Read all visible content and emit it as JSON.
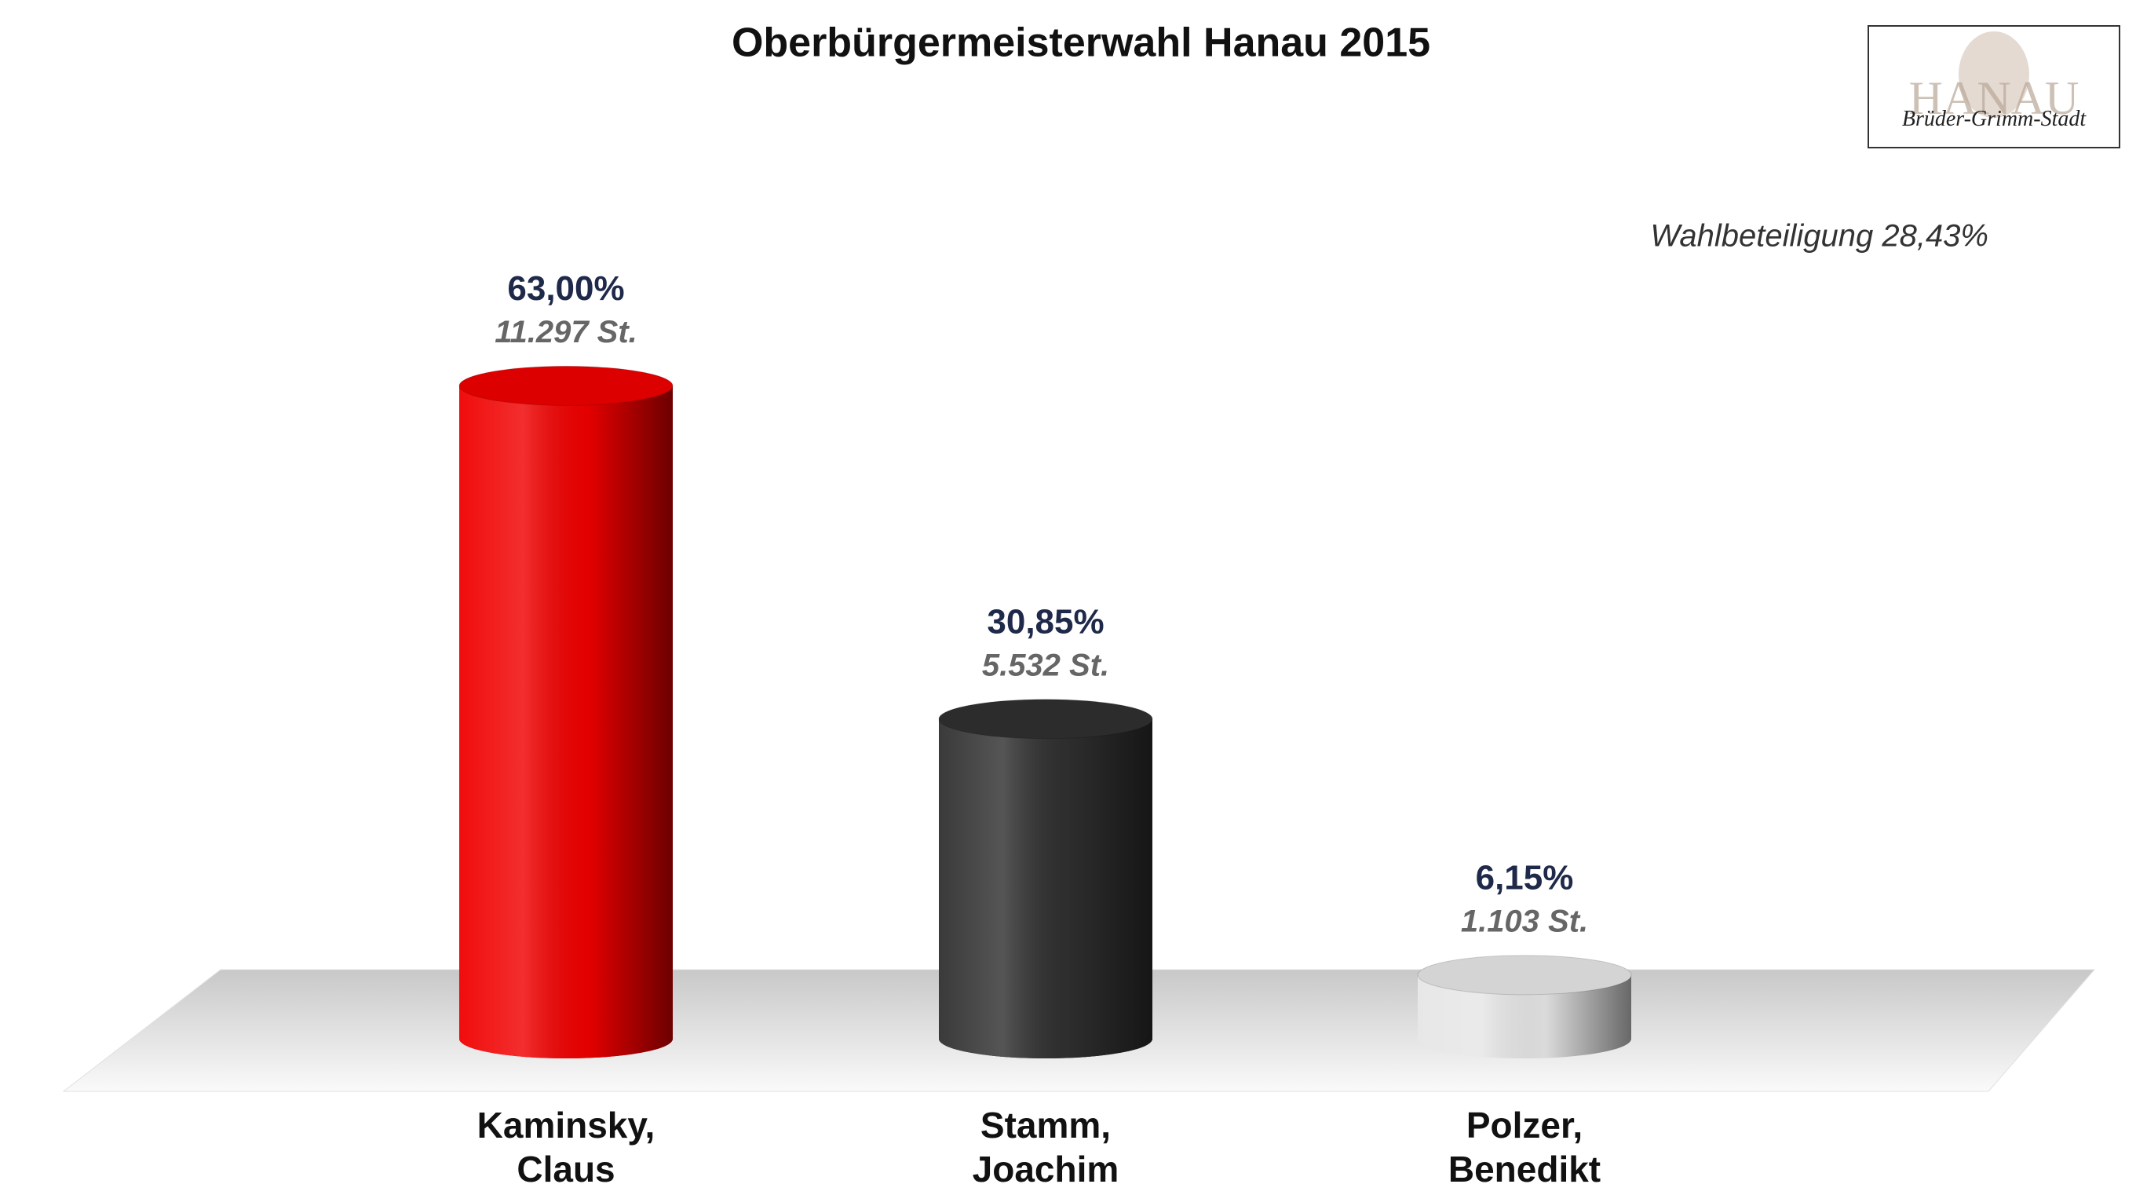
{
  "chart_data": {
    "type": "bar",
    "title": "Oberbürgermeisterwahl Hanau 2015",
    "annotation": "Wahlbeteiligung 28,43%",
    "logo": {
      "text": "HANAU",
      "subtitle": "Brüder-Grimm-Stadt"
    },
    "categories": [
      "Kaminsky,\nClaus",
      "Stamm,\nJoachim",
      "Polzer,\nBenedikt"
    ],
    "values": [
      63,
      30.85,
      6.15
    ],
    "value_labels": [
      "63,00%",
      "30,85%",
      "6,15%"
    ],
    "vote_labels": [
      "11.297 St.",
      "5.532 St.",
      "1.103 St."
    ],
    "colors": [
      "#f00000",
      "#303030",
      "#e6e6e6"
    ]
  }
}
